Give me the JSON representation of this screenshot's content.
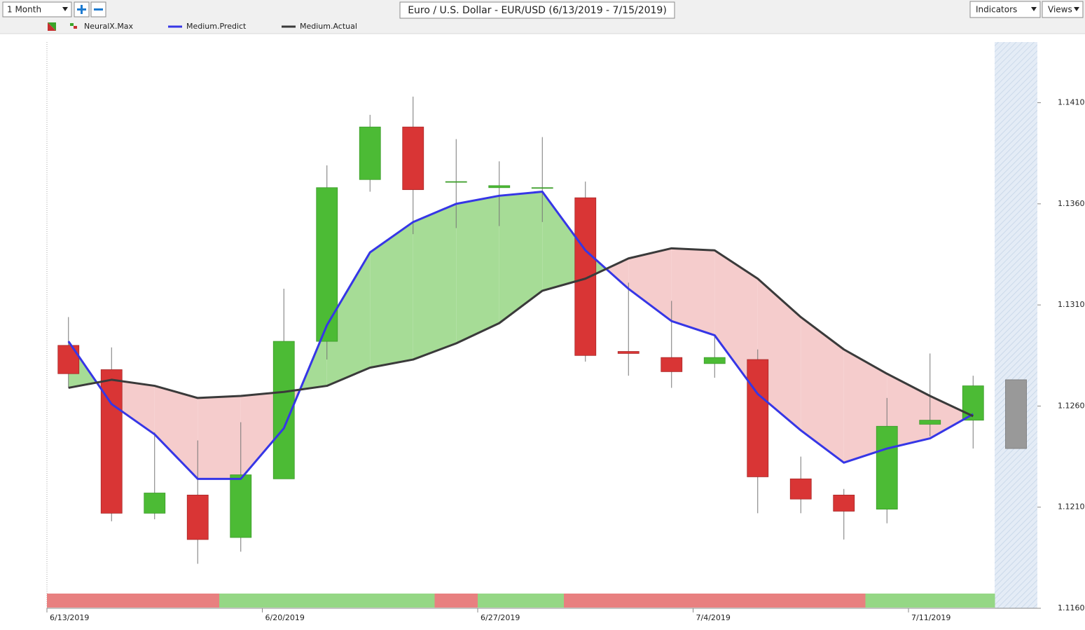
{
  "toolbar": {
    "period": "1 Month",
    "title": "Euro / U.S. Dollar - EUR/USD (6/13/2019 - 7/15/2019)",
    "indicators": "Indicators",
    "views": "Views"
  },
  "chart_data": {
    "type": "candlestick",
    "categories": [
      "6/13/2019",
      null,
      null,
      null,
      null,
      "6/20/2019",
      null,
      null,
      null,
      null,
      "6/27/2019",
      null,
      null,
      null,
      null,
      "7/4/2019",
      null,
      null,
      null,
      null,
      "7/11/2019",
      null
    ],
    "open": [
      1.129,
      1.1278,
      1.1207,
      1.1216,
      1.1195,
      1.1224,
      1.1292,
      1.1372,
      1.1398,
      1.1371,
      1.1368,
      1.1368,
      1.1363,
      1.1287,
      1.1284,
      1.1281,
      1.1283,
      1.1224,
      1.1216,
      1.1209,
      1.1251,
      1.1253
    ],
    "high": [
      1.1304,
      1.1289,
      1.1247,
      1.1243,
      1.1252,
      1.1318,
      1.1379,
      1.1404,
      1.1413,
      1.1392,
      1.1381,
      1.1393,
      1.1371,
      1.1321,
      1.1312,
      1.1295,
      1.1288,
      1.1235,
      1.1219,
      1.1264,
      1.1286,
      1.1275
    ],
    "low": [
      1.1269,
      1.1203,
      1.1204,
      1.1182,
      1.1188,
      1.1224,
      1.1283,
      1.1366,
      1.1345,
      1.1348,
      1.1349,
      1.1351,
      1.1282,
      1.1275,
      1.1269,
      1.1274,
      1.1207,
      1.1207,
      1.1194,
      1.1202,
      1.1245,
      1.1239
    ],
    "close": [
      1.1276,
      1.1207,
      1.1217,
      1.1194,
      1.1226,
      1.1292,
      1.1368,
      1.1398,
      1.1367,
      1.1371,
      1.1369,
      1.1368,
      1.1285,
      1.1286,
      1.1277,
      1.1284,
      1.1225,
      1.1214,
      1.1208,
      1.125,
      1.1253,
      1.127
    ],
    "forecast": {
      "open": 1.1273,
      "close": 1.1239,
      "color": "#999999"
    },
    "up_color": "#4cbb35",
    "down_color": "#d93535",
    "indicator": {
      "name": "NeuralX.Max",
      "colors": [
        "#e88080",
        "#e88080",
        "#e88080",
        "#e88080",
        "#95d785",
        "#95d785",
        "#95d785",
        "#95d785",
        "#95d785",
        "#e88080",
        "#95d785",
        "#95d785",
        "#e88080",
        "#e88080",
        "#e88080",
        "#e88080",
        "#e88080",
        "#e88080",
        "#e88080",
        "#95d785",
        "#95d785",
        "#95d785"
      ]
    },
    "series": [
      {
        "name": "Medium.Predict",
        "color": "#3636e6",
        "values": [
          1.1292,
          1.1261,
          1.1246,
          1.1224,
          1.1224,
          1.1249,
          1.13,
          1.1336,
          1.1351,
          1.136,
          1.1364,
          1.1366,
          1.1337,
          1.1318,
          1.1302,
          1.1295,
          1.1266,
          1.1248,
          1.1232,
          1.1239,
          1.1244,
          1.1256
        ]
      },
      {
        "name": "Medium.Actual",
        "color": "#3a3a3a",
        "values": [
          1.1269,
          1.1273,
          1.127,
          1.1264,
          1.1265,
          1.1267,
          1.127,
          1.1279,
          1.1283,
          1.1291,
          1.1301,
          1.1317,
          1.1323,
          1.1333,
          1.1338,
          1.1337,
          1.1323,
          1.1304,
          1.1288,
          1.1276,
          1.1265,
          1.1255
        ]
      }
    ],
    "fill_colors": {
      "above": "#a6dc96",
      "below": "#f5cccc"
    },
    "ylim": [
      1.116,
      1.144
    ],
    "yticks": [
      {
        "value": 1.116,
        "label": "1.1160"
      },
      {
        "value": 1.121,
        "label": "1.1210"
      },
      {
        "value": 1.126,
        "label": "1.1260"
      },
      {
        "value": 1.131,
        "label": "1.1310"
      },
      {
        "value": 1.136,
        "label": "1.1360"
      },
      {
        "value": 1.141,
        "label": "1.1410"
      }
    ]
  }
}
